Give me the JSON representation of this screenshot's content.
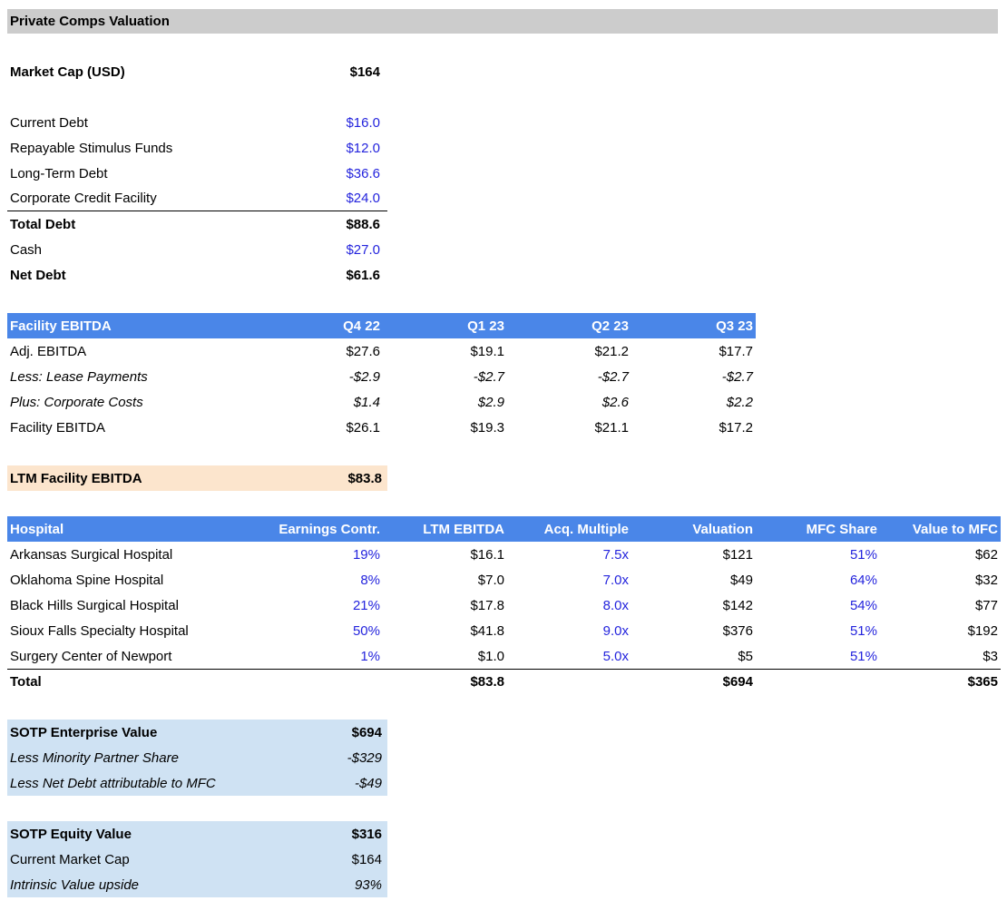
{
  "title": "Private Comps Valuation",
  "colors": {
    "title_bar_gray": "#cccccc",
    "table_header_blue": "#4a86e8",
    "highlight_peach": "#fce5cd",
    "highlight_light_blue": "#cfe2f3",
    "input_value_blue": "#2424dd",
    "text_black": "#000000"
  },
  "market_cap": {
    "label": "Market Cap (USD)",
    "value": "$164"
  },
  "debt": {
    "rows": [
      {
        "label": "Current Debt",
        "value": "$16.0"
      },
      {
        "label": "Repayable Stimulus Funds",
        "value": "$12.0"
      },
      {
        "label": "Long-Term Debt",
        "value": "$36.6"
      },
      {
        "label": "Corporate Credit Facility",
        "value": "$24.0"
      }
    ],
    "total_debt": {
      "label": "Total Debt",
      "value": "$88.6"
    },
    "cash": {
      "label": "Cash",
      "value": "$27.0"
    },
    "net_debt": {
      "label": "Net Debt",
      "value": "$61.6"
    }
  },
  "facility_ebitda": {
    "header": [
      "Facility EBITDA",
      "Q4 22",
      "Q1 23",
      "Q2 23",
      "Q3 23"
    ],
    "rows": [
      {
        "label": "Adj. EBITDA",
        "values": [
          "$27.6",
          "$19.1",
          "$21.2",
          "$17.7"
        ]
      },
      {
        "label": "Less: Lease Payments",
        "values": [
          "-$2.9",
          "-$2.7",
          "-$2.7",
          "-$2.7"
        ]
      },
      {
        "label": "Plus: Corporate Costs",
        "values": [
          "$1.4",
          "$2.9",
          "$2.6",
          "$2.2"
        ]
      },
      {
        "label": "Facility EBITDA",
        "values": [
          "$26.1",
          "$19.3",
          "$21.1",
          "$17.2"
        ]
      }
    ]
  },
  "ltm": {
    "label": "LTM Facility EBITDA",
    "value": "$83.8"
  },
  "hospitals": {
    "header": [
      "Hospital",
      "Earnings Contr.",
      "LTM EBITDA",
      "Acq. Multiple",
      "Valuation",
      "MFC Share",
      "Value to MFC"
    ],
    "rows": [
      {
        "name": "Arkansas Surgical Hospital",
        "cells": [
          "19%",
          "$16.1",
          "7.5x",
          "$121",
          "51%",
          "$62"
        ]
      },
      {
        "name": "Oklahoma Spine Hospital",
        "cells": [
          "8%",
          "$7.0",
          "7.0x",
          "$49",
          "64%",
          "$32"
        ]
      },
      {
        "name": "Black Hills Surgical Hospital",
        "cells": [
          "21%",
          "$17.8",
          "8.0x",
          "$142",
          "54%",
          "$77"
        ]
      },
      {
        "name": "Sioux Falls Specialty Hospital",
        "cells": [
          "50%",
          "$41.8",
          "9.0x",
          "$376",
          "51%",
          "$192"
        ]
      },
      {
        "name": "Surgery Center of Newport",
        "cells": [
          "1%",
          "$1.0",
          "5.0x",
          "$5",
          "51%",
          "$3"
        ]
      }
    ],
    "total": {
      "label": "Total",
      "ltm_ebitda": "$83.8",
      "valuation": "$694",
      "value_to_mfc": "$365"
    }
  },
  "sotp_enterprise": {
    "rows": [
      {
        "label": "SOTP Enterprise Value",
        "value": "$694"
      },
      {
        "label": "Less Minority Partner Share",
        "value": "-$329"
      },
      {
        "label": "Less Net Debt attributable to MFC",
        "value": "-$49"
      }
    ]
  },
  "sotp_equity": {
    "rows": [
      {
        "label": "SOTP Equity Value",
        "value": "$316"
      },
      {
        "label": "Current Market Cap",
        "value": "$164"
      },
      {
        "label": "Intrinsic Value upside",
        "value": "93%"
      }
    ]
  }
}
